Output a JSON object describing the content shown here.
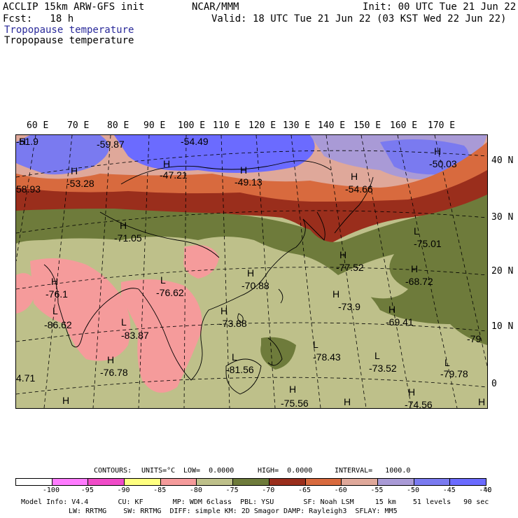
{
  "header": {
    "model": "ACCLIP 15km ARW-GFS init",
    "org": "NCAR/MMM",
    "init": "Init: 00 UTC Tue 21 Jun 22",
    "fcst": "Fcst:   18 h",
    "valid": "Valid: 18 UTC Tue 21 Jun 22 (03 KST Wed 22 Jun 22)",
    "field_blue": "Tropopause temperature",
    "field_black": "Tropopause temperature"
  },
  "map": {
    "lon_labels": [
      "60 E",
      "70 E",
      "80 E",
      "90 E",
      "100 E",
      "110 E",
      "120 E",
      "130 E",
      "140 E",
      "150 E",
      "160 E",
      "170 E"
    ],
    "lat_labels": [
      "40 N",
      "30 N",
      "20 N",
      "10 N",
      "0"
    ],
    "extrema": [
      {
        "mark": "H",
        "value": "-51.9"
      },
      {
        "mark": "",
        "value": "-59.87"
      },
      {
        "mark": "",
        "value": "-54.49"
      },
      {
        "mark": "H",
        "value": "-50.03"
      },
      {
        "mark": "H",
        "value": "-53.28"
      },
      {
        "mark": "H",
        "value": "-47.21"
      },
      {
        "mark": "H",
        "value": "-49.13"
      },
      {
        "mark": "H",
        "value": "-54.66"
      },
      {
        "mark": "",
        "value": "58.93"
      },
      {
        "mark": "H",
        "value": "-71.05"
      },
      {
        "mark": "L",
        "value": "-75.01"
      },
      {
        "mark": "H",
        "value": "-77.52"
      },
      {
        "mark": "H",
        "value": "-68.72"
      },
      {
        "mark": "H",
        "value": "-76.1"
      },
      {
        "mark": "L",
        "value": "-76.62"
      },
      {
        "mark": "H",
        "value": "-70.88"
      },
      {
        "mark": "H",
        "value": "-73.9"
      },
      {
        "mark": "H",
        "value": "-69.41"
      },
      {
        "mark": "L",
        "value": "-86.62"
      },
      {
        "mark": "L",
        "value": "-83.87"
      },
      {
        "mark": "H",
        "value": "-73.88"
      },
      {
        "mark": "",
        "value": "-79"
      },
      {
        "mark": "L",
        "value": "-78.43"
      },
      {
        "mark": "H",
        "value": "-76.78"
      },
      {
        "mark": "L",
        "value": "-81.56"
      },
      {
        "mark": "L",
        "value": "-73.52"
      },
      {
        "mark": "L",
        "value": "-79.78"
      },
      {
        "mark": "",
        "value": "4.71"
      },
      {
        "mark": "H",
        "value": "-75.56"
      },
      {
        "mark": "H",
        "value": "-74.56"
      },
      {
        "mark": "H",
        "value": ""
      },
      {
        "mark": "H",
        "value": ""
      },
      {
        "mark": "H",
        "value": ""
      }
    ]
  },
  "contours": {
    "label": "CONTOURS:",
    "units": "UNITS=°C",
    "low": "LOW=  0.0000",
    "high": "HIGH=  0.0000",
    "interval": "INTERVAL=   1000.0"
  },
  "colorbar": {
    "ticks": [
      "-100",
      "-95",
      "-90",
      "-85",
      "-80",
      "-75",
      "-70",
      "-65",
      "-60",
      "-55",
      "-50",
      "-45",
      "-40"
    ],
    "unit": "°C",
    "colors": [
      "#ffffff",
      "#ff7bff",
      "#f04bc8",
      "#ffff80",
      "#f59b9b",
      "#bec08a",
      "#6e7b3b",
      "#9a2e1c",
      "#d86a3e",
      "#dfa89a",
      "#a99ad6",
      "#7a7af0",
      "#6b6bff"
    ]
  },
  "footer": {
    "line1": "Model Info: V4.4       CU: KF       MP: WDM 6class  PBL: YSU       SF: Noah LSM     15 km    51 levels   90 sec",
    "line2": "LW: RRTMG    SW: RRTMG  DIFF: simple KM: 2D Smagor DAMP: Rayleigh3  SFLAY: MM5"
  }
}
